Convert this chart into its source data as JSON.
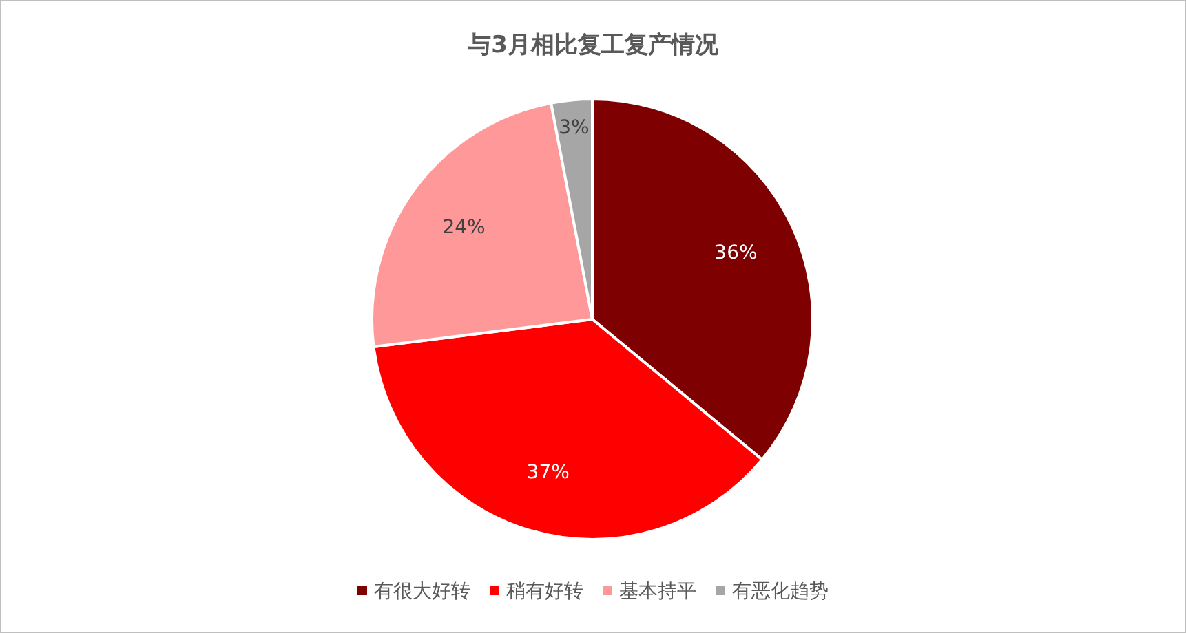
{
  "chart_data": {
    "type": "pie",
    "title": "与3月相比复工复产情况",
    "categories": [
      "有很大好转",
      "稍有好转",
      "基本持平",
      "有恶化趋势"
    ],
    "values": [
      36,
      37,
      24,
      3
    ],
    "value_labels": [
      "36%",
      "37%",
      "24%",
      "3%"
    ],
    "colors": [
      "#7f0000",
      "#ff0000",
      "#ff9999",
      "#a6a6a6"
    ],
    "legend": "bottom"
  }
}
